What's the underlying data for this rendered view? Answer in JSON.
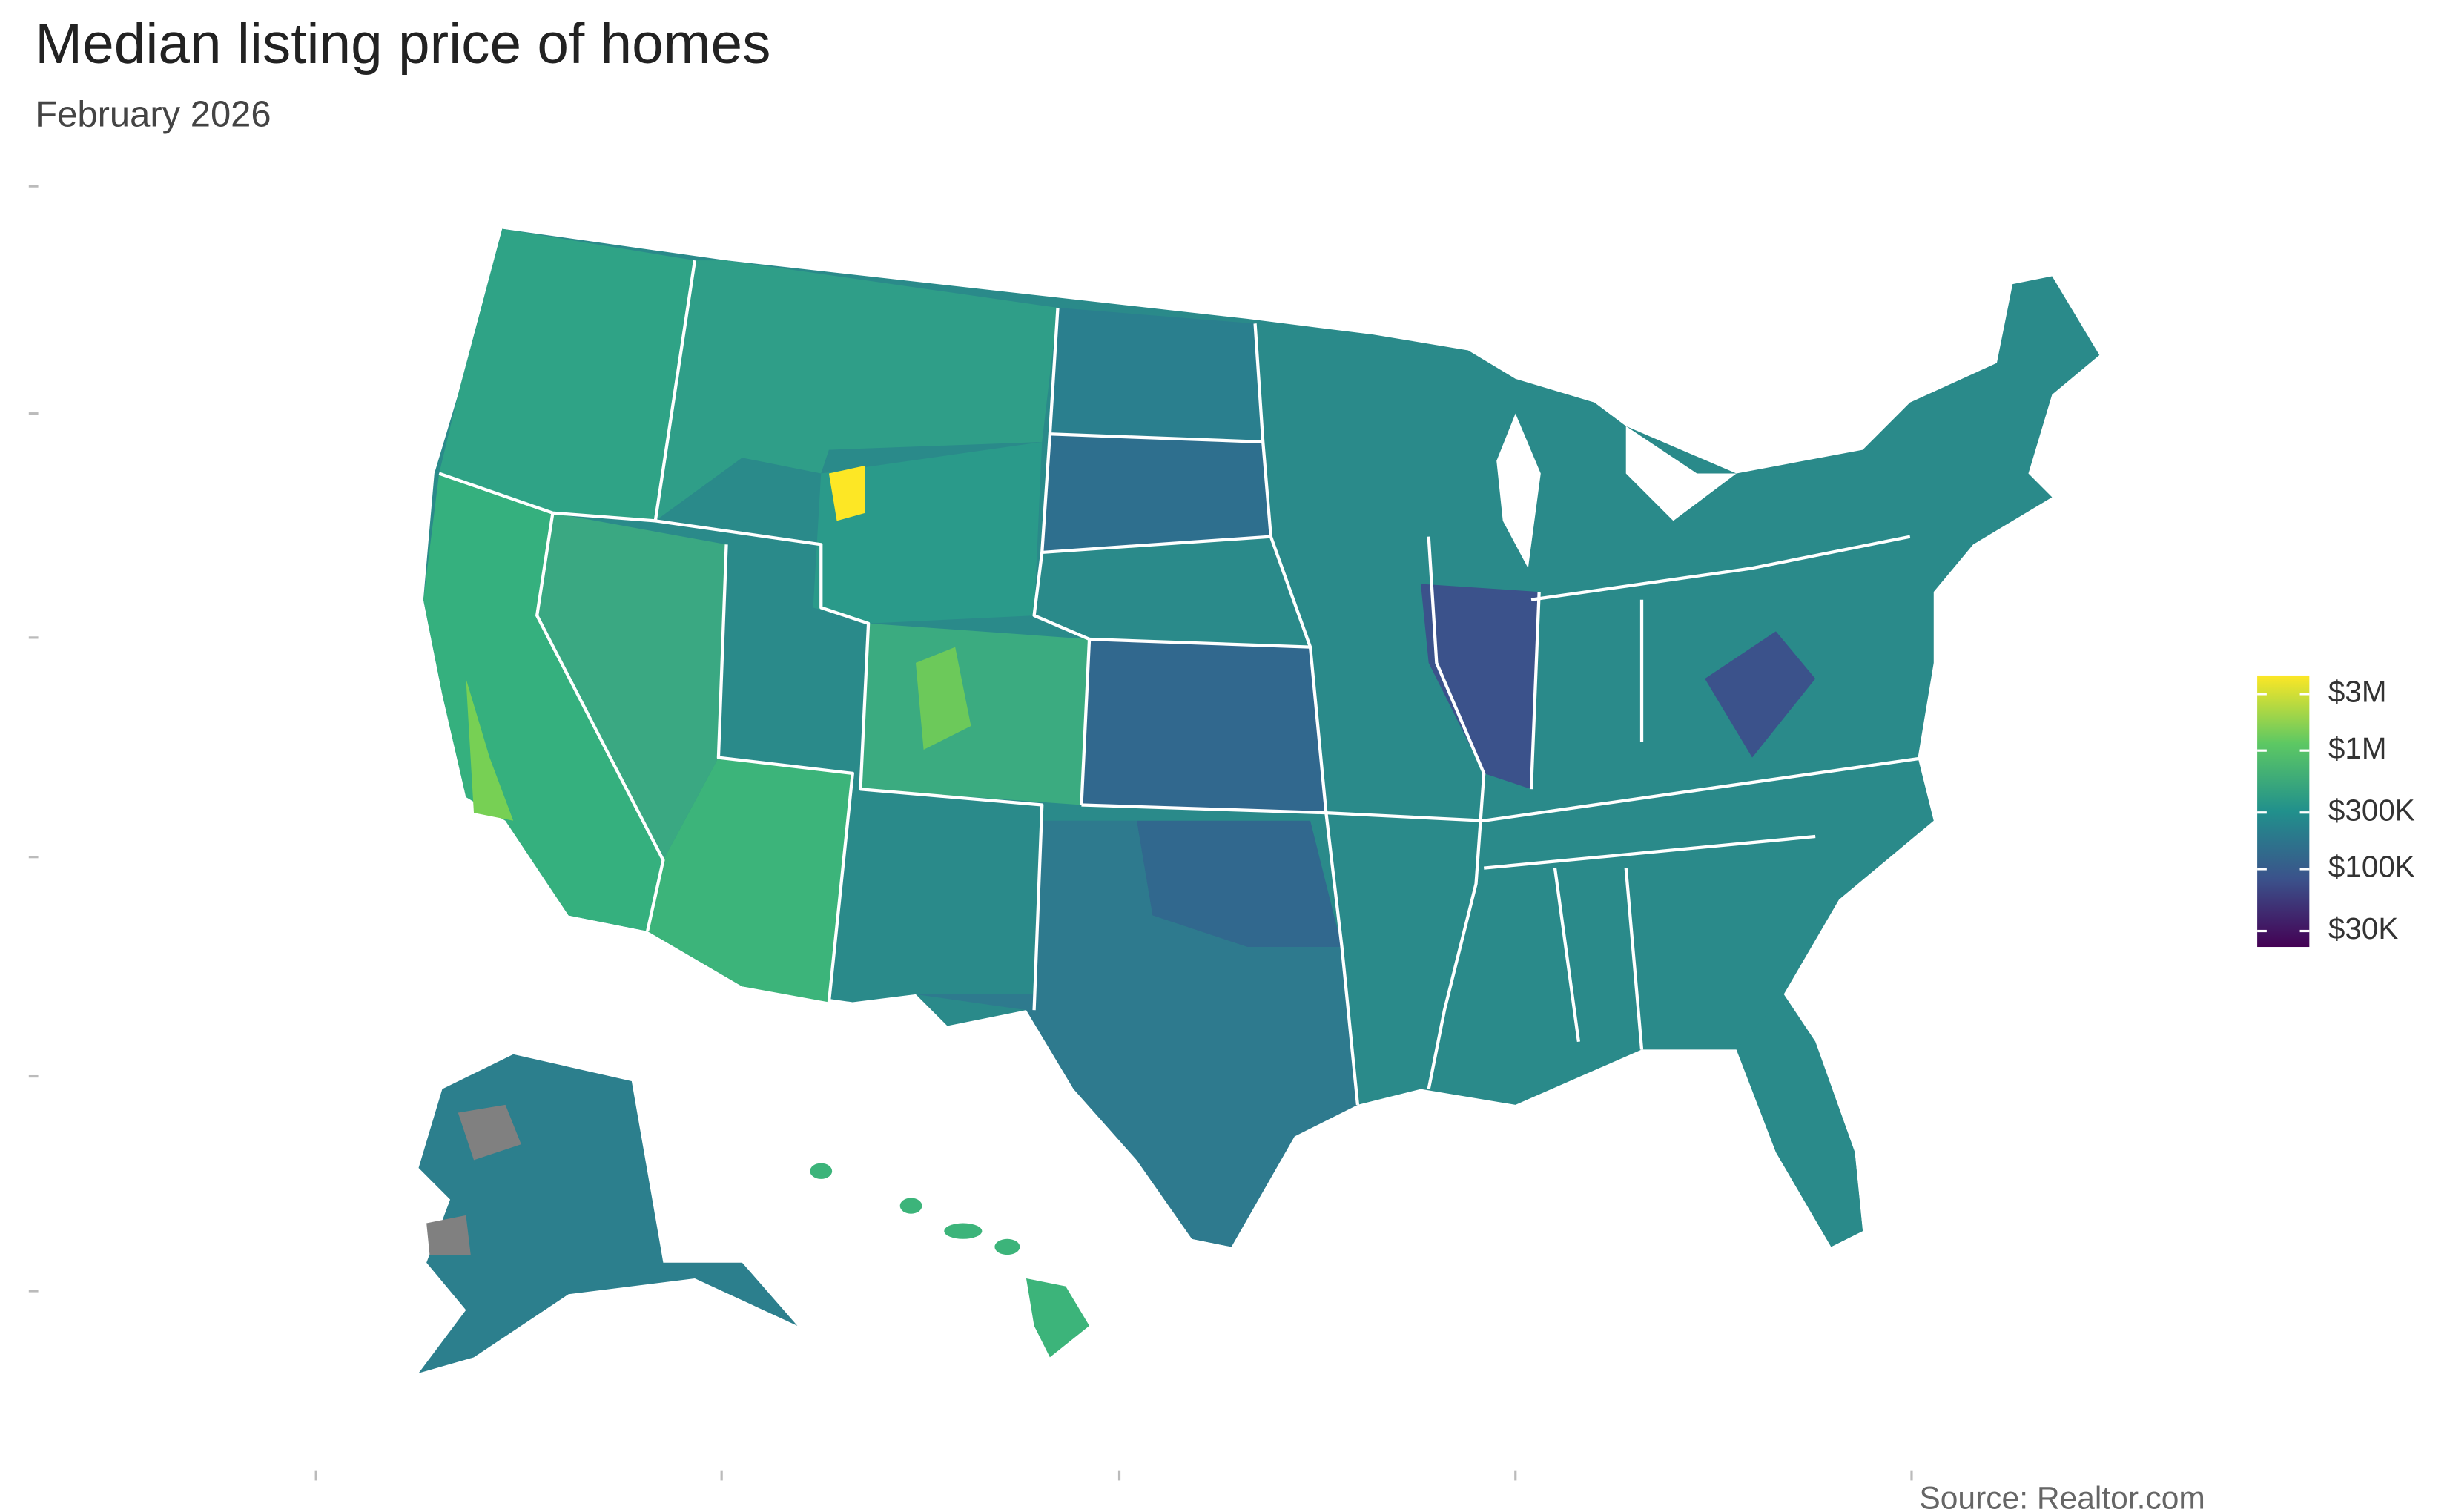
{
  "map": {
    "title": "Median listing price of homes",
    "subtitle": "February 2026",
    "source": "Source: Realtor.com",
    "legend": {
      "scale": "log",
      "lim": [
        22000,
        4300000
      ],
      "colors": [
        "#440154",
        "#3b528b",
        "#21908c",
        "#5dc863",
        "#fde725"
      ],
      "ticks": [
        {
          "value": 3000000,
          "label": "$3M"
        },
        {
          "value": 1000000,
          "label": "$1M"
        },
        {
          "value": 300000,
          "label": "$300K"
        },
        {
          "value": 100000,
          "label": "$100K"
        },
        {
          "value": 30000,
          "label": "$30K"
        }
      ]
    }
  }
}
